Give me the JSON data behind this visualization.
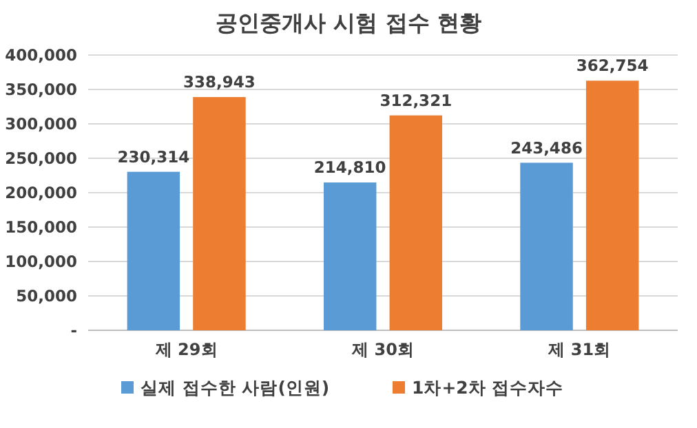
{
  "chart_data": {
    "type": "bar",
    "title": "공인중개사 시험 접수 현황",
    "categories": [
      "제 29회",
      "제 30회",
      "제 31회"
    ],
    "series": [
      {
        "name": "실제 접수한 사람(인원)",
        "color": "#5b9bd5",
        "values": [
          230314,
          214810,
          243486
        ],
        "value_labels": [
          "230,314",
          "214,810",
          "243,486"
        ]
      },
      {
        "name": "1차+2차 접수자수",
        "color": "#ed7d31",
        "values": [
          338943,
          312321,
          362754
        ],
        "value_labels": [
          "338,943",
          "312,321",
          "362,754"
        ]
      }
    ],
    "ylim": [
      0,
      400000
    ],
    "yticks": [
      {
        "value": 0,
        "label": "-"
      },
      {
        "value": 50000,
        "label": "50,000"
      },
      {
        "value": 100000,
        "label": "100,000"
      },
      {
        "value": 150000,
        "label": "150,000"
      },
      {
        "value": 200000,
        "label": "200,000"
      },
      {
        "value": 250000,
        "label": "250,000"
      },
      {
        "value": 300000,
        "label": "300,000"
      },
      {
        "value": 350000,
        "label": "350,000"
      },
      {
        "value": 400000,
        "label": "400,000"
      }
    ],
    "grid": "y",
    "legend": "bottom"
  }
}
